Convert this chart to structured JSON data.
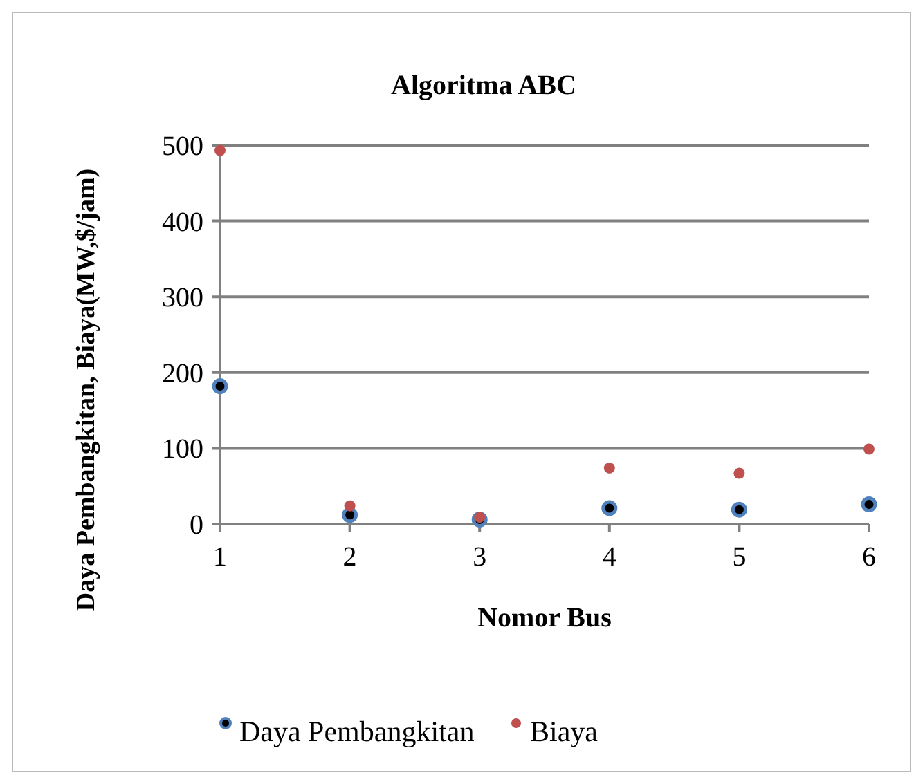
{
  "chart_data": {
    "type": "scatter",
    "title": "Algoritma ABC",
    "xlabel": "Nomor Bus",
    "ylabel": "Daya Pembangkitan, Biaya(MW,$/jam)",
    "x": [
      1,
      2,
      3,
      4,
      5,
      6
    ],
    "xlim": [
      1,
      6
    ],
    "xticks": [
      1,
      2,
      3,
      4,
      5,
      6
    ],
    "ylim": [
      0,
      500
    ],
    "yticks": [
      0,
      100,
      200,
      300,
      400,
      500
    ],
    "grid": "y",
    "legend": "bottom",
    "marker": "circle",
    "series": [
      {
        "name": "Daya Pembangkitan",
        "color": "#4f81bd",
        "values": [
          182,
          12,
          6,
          21,
          19,
          26
        ]
      },
      {
        "name": "Biaya",
        "color": "#c0504d",
        "values": [
          493,
          24,
          9,
          74,
          67,
          99
        ]
      }
    ]
  }
}
